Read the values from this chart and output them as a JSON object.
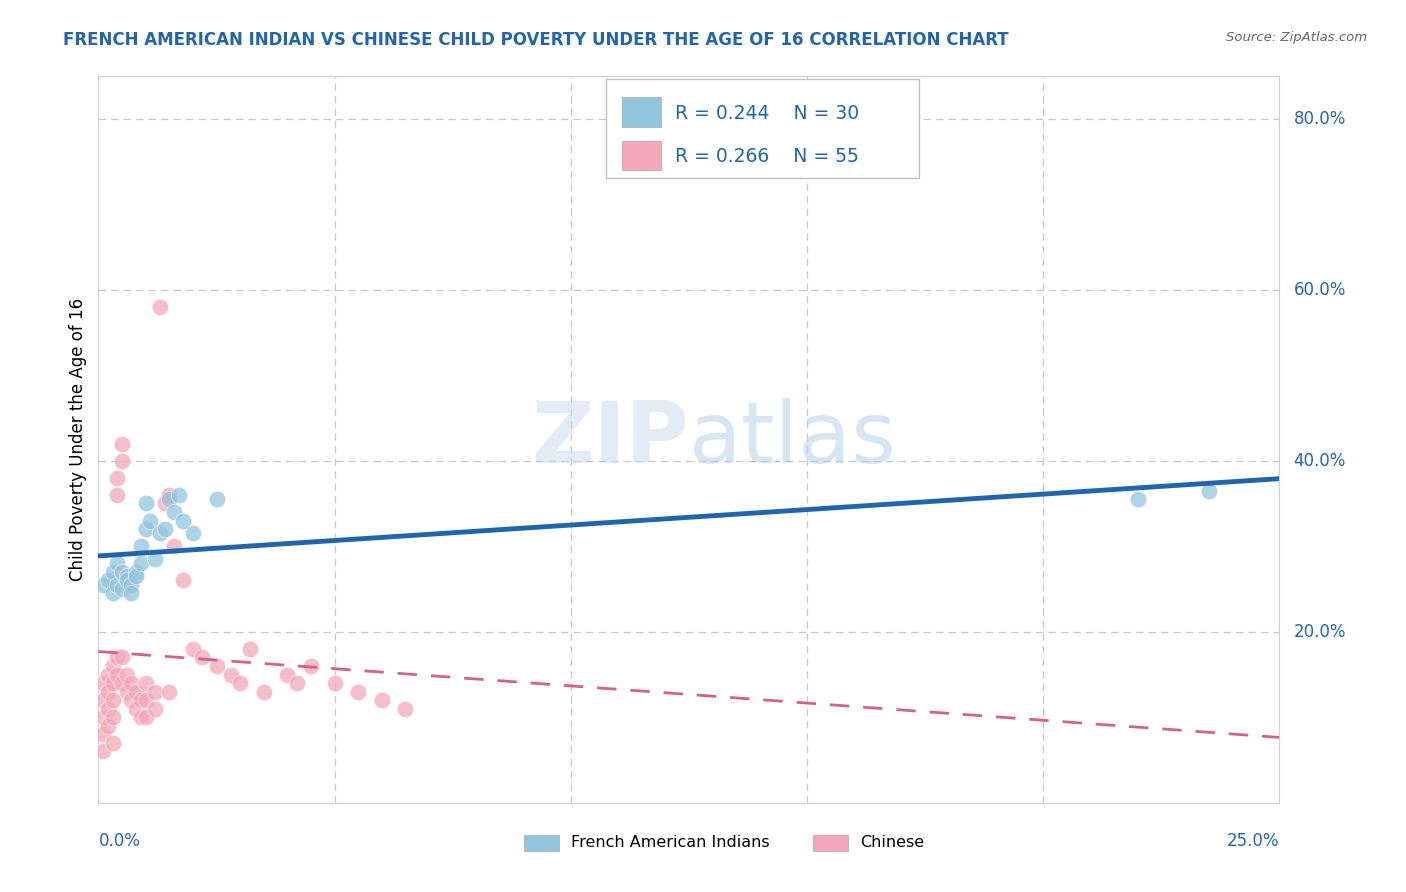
{
  "title": "FRENCH AMERICAN INDIAN VS CHINESE CHILD POVERTY UNDER THE AGE OF 16 CORRELATION CHART",
  "source": "Source: ZipAtlas.com",
  "ylabel": "Child Poverty Under the Age of 16",
  "blue_color": "#92c5de",
  "pink_color": "#f4a7b9",
  "blue_line_color": "#2166ac",
  "pink_line_color": "#d6608a",
  "background_color": "#ffffff",
  "grid_color": "#c8c8c8",
  "fai_x": [
    0.001,
    0.002,
    0.003,
    0.003,
    0.004,
    0.004,
    0.005,
    0.005,
    0.006,
    0.006,
    0.007,
    0.007,
    0.008,
    0.008,
    0.009,
    0.009,
    0.01,
    0.01,
    0.011,
    0.012,
    0.013,
    0.014,
    0.015,
    0.016,
    0.017,
    0.018,
    0.02,
    0.025,
    0.22,
    0.235
  ],
  "fai_y": [
    0.255,
    0.26,
    0.245,
    0.27,
    0.255,
    0.28,
    0.25,
    0.27,
    0.265,
    0.26,
    0.255,
    0.245,
    0.27,
    0.265,
    0.28,
    0.3,
    0.32,
    0.35,
    0.33,
    0.285,
    0.315,
    0.32,
    0.355,
    0.34,
    0.36,
    0.33,
    0.315,
    0.355,
    0.355,
    0.365
  ],
  "ch_x": [
    0.001,
    0.001,
    0.001,
    0.001,
    0.001,
    0.002,
    0.002,
    0.002,
    0.002,
    0.003,
    0.003,
    0.003,
    0.003,
    0.003,
    0.004,
    0.004,
    0.004,
    0.004,
    0.005,
    0.005,
    0.005,
    0.005,
    0.006,
    0.006,
    0.007,
    0.007,
    0.008,
    0.008,
    0.009,
    0.009,
    0.01,
    0.01,
    0.01,
    0.012,
    0.012,
    0.013,
    0.014,
    0.015,
    0.015,
    0.016,
    0.018,
    0.02,
    0.022,
    0.025,
    0.028,
    0.03,
    0.032,
    0.035,
    0.04,
    0.042,
    0.045,
    0.05,
    0.055,
    0.06,
    0.065
  ],
  "ch_y": [
    0.14,
    0.12,
    0.1,
    0.08,
    0.06,
    0.15,
    0.13,
    0.11,
    0.09,
    0.16,
    0.14,
    0.12,
    0.1,
    0.07,
    0.17,
    0.15,
    0.38,
    0.36,
    0.17,
    0.14,
    0.42,
    0.4,
    0.15,
    0.13,
    0.14,
    0.12,
    0.13,
    0.11,
    0.12,
    0.1,
    0.14,
    0.12,
    0.1,
    0.13,
    0.11,
    0.58,
    0.35,
    0.36,
    0.13,
    0.3,
    0.26,
    0.18,
    0.17,
    0.16,
    0.15,
    0.14,
    0.18,
    0.13,
    0.15,
    0.14,
    0.16,
    0.14,
    0.13,
    0.12,
    0.11
  ],
  "ytick_vals": [
    0.2,
    0.4,
    0.6,
    0.8
  ],
  "ytick_labels": [
    "20.0%",
    "40.0%",
    "60.0%",
    "80.0%"
  ],
  "xlim": [
    0.0,
    0.25
  ],
  "ylim": [
    0.0,
    0.85
  ]
}
